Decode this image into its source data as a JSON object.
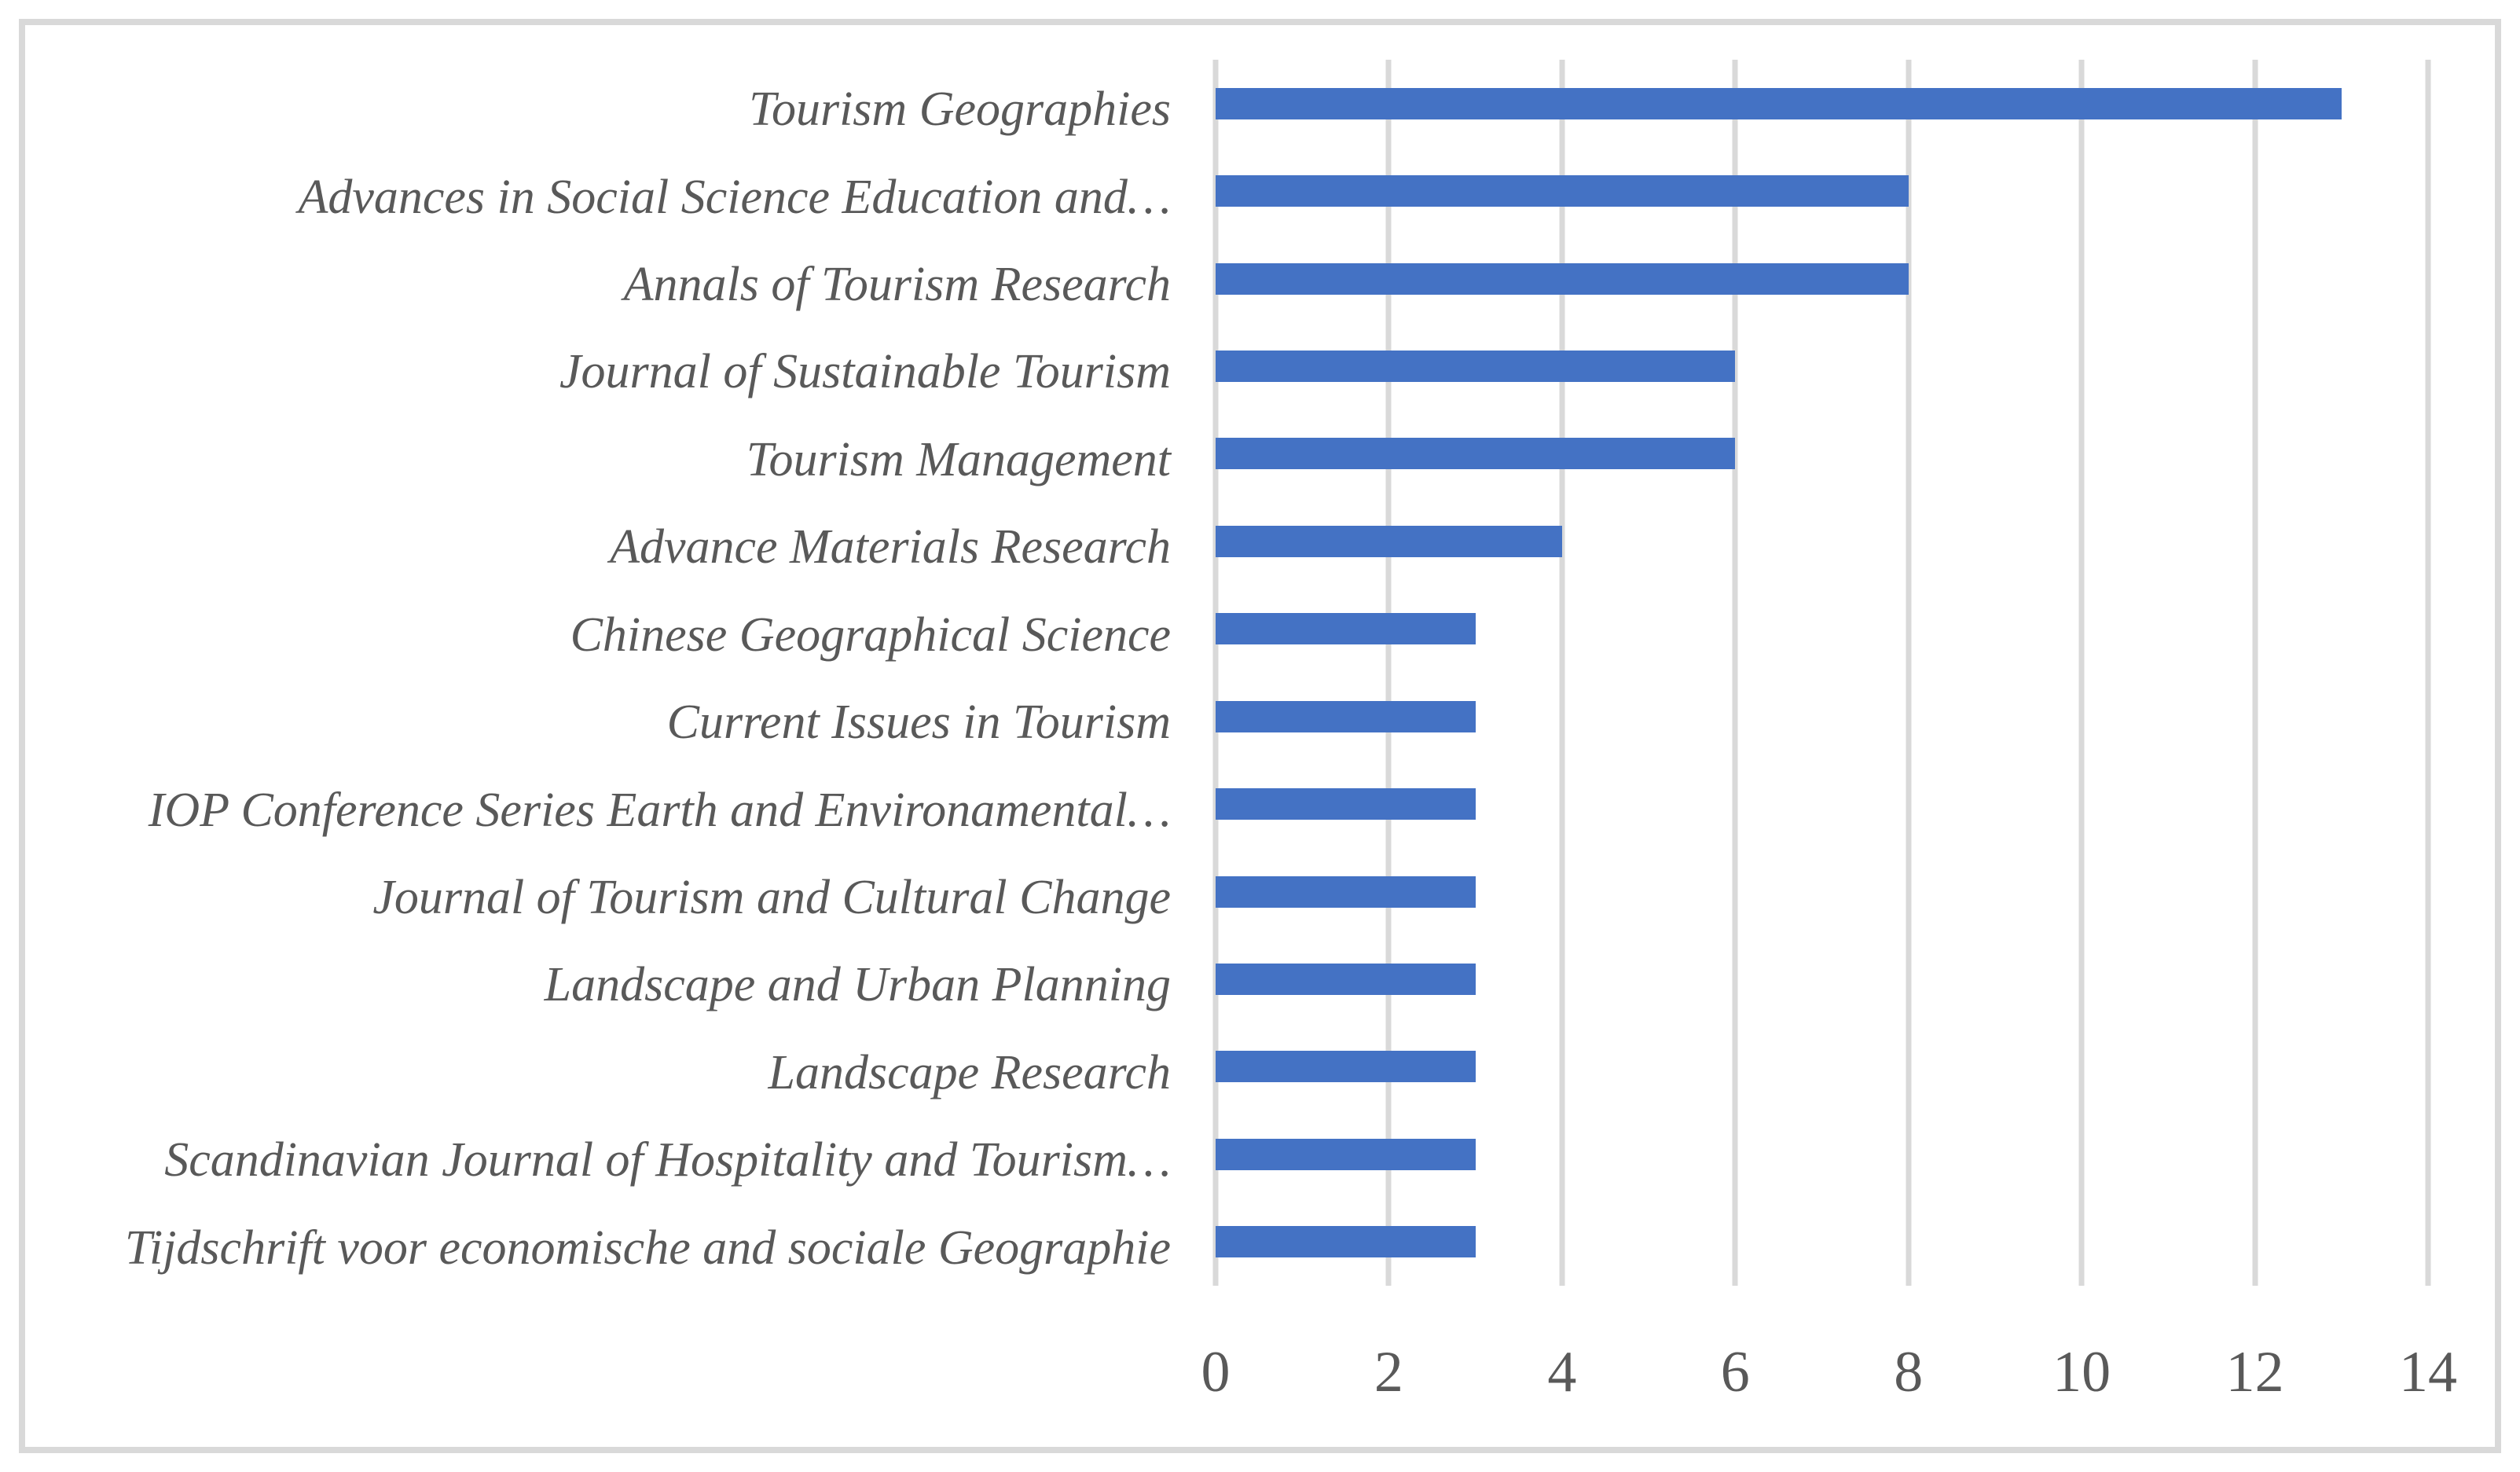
{
  "colors": {
    "bar": "#4472c4",
    "gridline": "#d9d9d9",
    "text": "#595959",
    "frame_border": "#d9d9d9",
    "background": "#ffffff"
  },
  "chart_data": {
    "type": "bar",
    "orientation": "horizontal",
    "title": "",
    "xlabel": "",
    "ylabel": "",
    "legend": false,
    "grid": true,
    "xlim": [
      0,
      14
    ],
    "xticks": [
      0,
      2,
      4,
      6,
      8,
      10,
      12,
      14
    ],
    "categories": [
      "Tourism Geographies",
      "Advances in Social Science Education and…",
      "Annals of Tourism Research",
      "Journal of Sustainable Tourism",
      "Tourism Management",
      "Advance Materials Research",
      "Chinese Geographical Science",
      "Current Issues in Tourism",
      "IOP Conference Series Earth and Environamental…",
      "Journal of Tourism and Cultural Change",
      "Landscape and Urban Planning",
      "Landscape Research",
      "Scandinavian Journal of Hospitality and Tourism…",
      "Tijdschrift voor economische and sociale Geographie"
    ],
    "values": [
      13,
      8,
      8,
      6,
      6,
      4,
      3,
      3,
      3,
      3,
      3,
      3,
      3,
      3
    ]
  }
}
